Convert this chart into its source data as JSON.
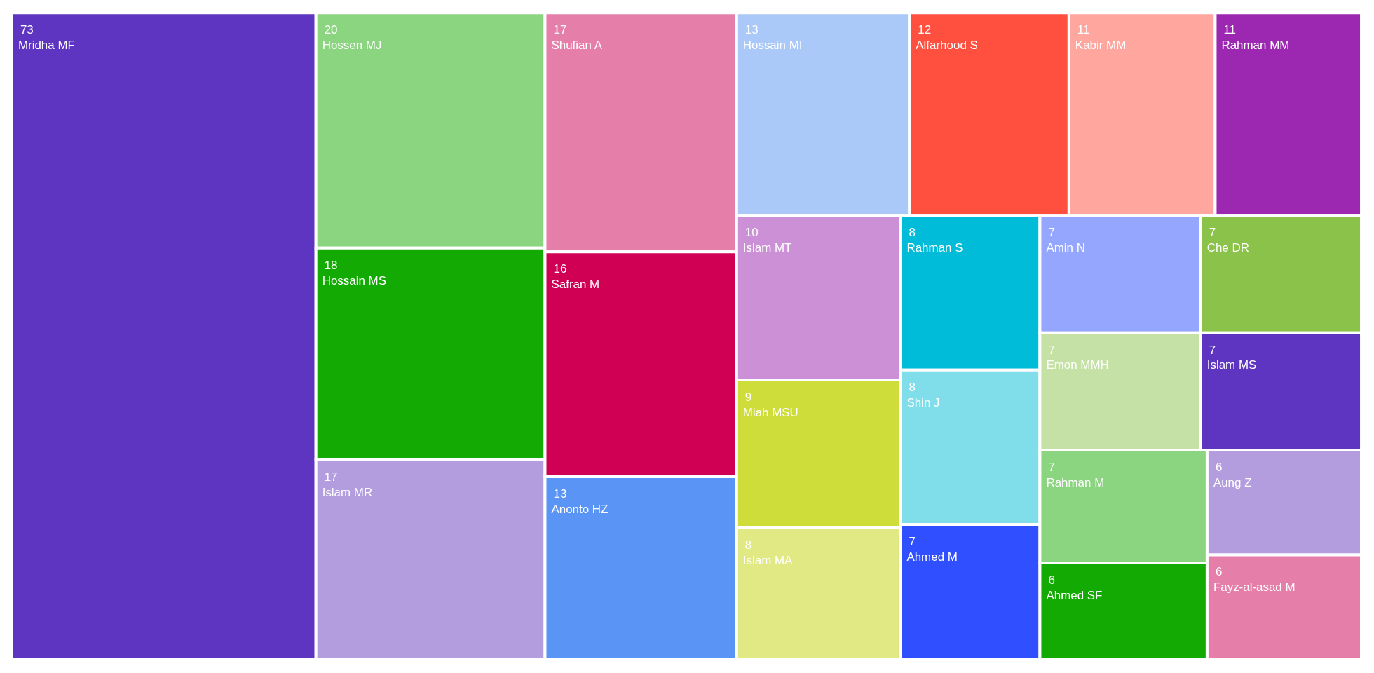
{
  "chart_data": {
    "type": "other",
    "data_labels": true,
    "categories": [
      "Mridha MF",
      "Hossen MJ",
      "Hossain MS",
      "Islam MR",
      "Shufian A",
      "Safran M",
      "Anonto HZ",
      "Hossain MI",
      "Alfarhood S",
      "Kabir MM",
      "Rahman MM",
      "Islam MT",
      "Miah MSU",
      "Islam MA",
      "Rahman S",
      "Shin J",
      "Ahmed M",
      "Amin N",
      "Che DR",
      "Emon MMH",
      "Islam MS",
      "Rahman M",
      "Ahmed SF",
      "Aung Z",
      "Fayz-al-asad M"
    ],
    "values": [
      73,
      20,
      18,
      17,
      17,
      16,
      13,
      13,
      12,
      11,
      11,
      10,
      9,
      8,
      8,
      8,
      7,
      7,
      7,
      7,
      7,
      7,
      6,
      6,
      6
    ],
    "colors": [
      "#5e35c0",
      "#8bd580",
      "#13aa03",
      "#b39ddf",
      "#e57fa9",
      "#d00055",
      "#5a95f5",
      "#aac8f8",
      "#ff4f3f",
      "#ffa69e",
      "#9c27b0",
      "#cb90d5",
      "#cfdd3a",
      "#e1e985",
      "#00bcd8",
      "#7fdeea",
      "#304ffe",
      "#94a6fd",
      "#8bc34a",
      "#c5e1a5",
      "#5e35c0",
      "#8bd580",
      "#13aa03",
      "#b39ddf",
      "#e57fa9"
    ]
  }
}
